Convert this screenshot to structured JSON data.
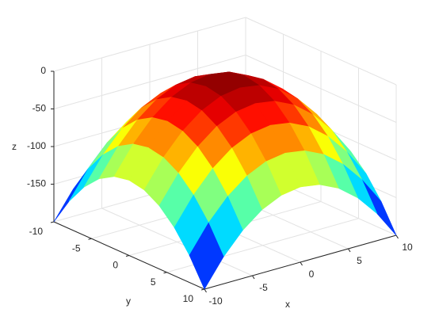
{
  "chart_data": {
    "type": "surface",
    "colormap": "jet",
    "grid": true,
    "x": [
      -10,
      -8,
      -6,
      -4,
      -2,
      0,
      2,
      4,
      6,
      8,
      10
    ],
    "y": [
      -10,
      -8,
      -6,
      -4,
      -2,
      0,
      2,
      4,
      6,
      8,
      10
    ],
    "z": [
      [
        -200,
        -164,
        -136,
        -116,
        -104,
        -100,
        -104,
        -116,
        -136,
        -164,
        -200
      ],
      [
        -164,
        -128,
        -100,
        -80,
        -68,
        -64,
        -68,
        -80,
        -100,
        -128,
        -164
      ],
      [
        -136,
        -100,
        -72,
        -52,
        -40,
        -36,
        -40,
        -52,
        -72,
        -100,
        -136
      ],
      [
        -116,
        -80,
        -52,
        -32,
        -20,
        -16,
        -20,
        -32,
        -52,
        -80,
        -116
      ],
      [
        -104,
        -68,
        -40,
        -20,
        -8,
        -4,
        -8,
        -20,
        -40,
        -68,
        -104
      ],
      [
        -100,
        -64,
        -36,
        -16,
        -4,
        0,
        -4,
        -16,
        -36,
        -64,
        -100
      ],
      [
        -104,
        -68,
        -40,
        -20,
        -8,
        -4,
        -8,
        -20,
        -40,
        -68,
        -104
      ],
      [
        -116,
        -80,
        -52,
        -32,
        -20,
        -16,
        -20,
        -32,
        -52,
        -80,
        -116
      ],
      [
        -136,
        -100,
        -72,
        -52,
        -40,
        -36,
        -40,
        -52,
        -72,
        -100,
        -136
      ],
      [
        -164,
        -128,
        -100,
        -80,
        -68,
        -64,
        -68,
        -80,
        -100,
        -128,
        -164
      ],
      [
        -200,
        -164,
        -136,
        -116,
        -104,
        -100,
        -104,
        -116,
        -136,
        -164,
        -200
      ]
    ],
    "xlim": [
      -10,
      10
    ],
    "ylim": [
      -10,
      10
    ],
    "zlim": [
      -200,
      0
    ],
    "xticks": [
      -10,
      -5,
      0,
      5,
      10
    ],
    "yticks": [
      -10,
      -5,
      0,
      5,
      10
    ],
    "zticks": [
      -150,
      -100,
      -50,
      0
    ],
    "xlabel": "x",
    "ylabel": "y",
    "zlabel": "z"
  }
}
